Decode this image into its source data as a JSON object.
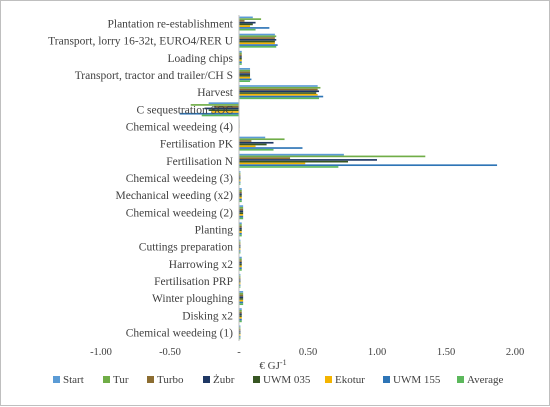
{
  "chart_data": {
    "type": "bar",
    "orientation": "horizontal",
    "categories": [
      "Plantation re-establishment",
      "Transport, lorry 16-32t, EURO4/RER U",
      "Loading chips",
      "Transport, tractor and trailer/CH S",
      "Harvest",
      "C sequestration SOC",
      "Chemical weedeing (4)",
      "Fertilisation PK",
      "Fertilisation N",
      "Chemical weedeing (3)",
      "Mechanical weeding (x2)",
      "Chemical weedeing (2)",
      "Planting",
      "Cuttings preparation",
      "Harrowing x2",
      "Fertilisation PRP",
      "Winter ploughing",
      "Disking x2",
      "Chemical weedeing (1)"
    ],
    "series": [
      {
        "name": "Start",
        "color": "#5b9bd5",
        "values": [
          0.1,
          0.26,
          0.02,
          0.08,
          0.57,
          -0.22,
          0.0,
          0.19,
          0.76,
          0.01,
          0.02,
          0.03,
          0.02,
          0.01,
          0.02,
          0.01,
          0.03,
          0.02,
          0.01
        ]
      },
      {
        "name": "Tur",
        "color": "#70ad47",
        "values": [
          0.16,
          0.27,
          0.02,
          0.08,
          0.59,
          -0.35,
          0.0,
          0.33,
          1.35,
          0.01,
          0.02,
          0.03,
          0.02,
          0.01,
          0.02,
          0.01,
          0.03,
          0.02,
          0.01
        ]
      },
      {
        "name": "Turbo",
        "color": "#8c6d31",
        "values": [
          0.04,
          0.26,
          0.02,
          0.08,
          0.57,
          -0.18,
          0.0,
          0.09,
          0.37,
          0.01,
          0.02,
          0.03,
          0.02,
          0.01,
          0.02,
          0.01,
          0.03,
          0.02,
          0.01
        ]
      },
      {
        "name": "Żubr",
        "color": "#1f3864",
        "values": [
          0.12,
          0.27,
          0.02,
          0.08,
          0.58,
          -0.25,
          0.0,
          0.25,
          1.0,
          0.01,
          0.02,
          0.03,
          0.02,
          0.01,
          0.02,
          0.01,
          0.03,
          0.02,
          0.01
        ]
      },
      {
        "name": "UWM 035",
        "color": "#375623",
        "values": [
          0.1,
          0.26,
          0.02,
          0.08,
          0.56,
          -0.22,
          0.0,
          0.2,
          0.79,
          0.01,
          0.02,
          0.03,
          0.02,
          0.01,
          0.02,
          0.01,
          0.03,
          0.02,
          0.01
        ]
      },
      {
        "name": "Ekotur",
        "color": "#f4b400",
        "values": [
          0.08,
          0.26,
          0.02,
          0.08,
          0.57,
          -0.2,
          0.0,
          0.12,
          0.48,
          0.01,
          0.02,
          0.03,
          0.02,
          0.01,
          0.02,
          0.01,
          0.03,
          0.02,
          0.01
        ]
      },
      {
        "name": "UWM 155",
        "color": "#2e75b6",
        "values": [
          0.22,
          0.28,
          0.02,
          0.09,
          0.61,
          -0.43,
          0.0,
          0.46,
          1.87,
          0.01,
          0.02,
          0.03,
          0.02,
          0.01,
          0.02,
          0.01,
          0.03,
          0.02,
          0.01
        ]
      },
      {
        "name": "Average",
        "color": "#5cb85c",
        "values": [
          0.12,
          0.27,
          0.02,
          0.08,
          0.58,
          -0.27,
          0.0,
          0.25,
          0.72,
          0.01,
          0.02,
          0.03,
          0.02,
          0.01,
          0.02,
          0.01,
          0.03,
          0.02,
          0.01
        ]
      }
    ],
    "xlim": [
      -1.0,
      2.0
    ],
    "xticks": [
      -1.0,
      -0.5,
      0,
      0.5,
      1.0,
      1.5,
      2.0
    ],
    "xtick_labels": [
      "-1.00",
      "-0.50",
      "-",
      "0.50",
      "1.00",
      "1.50",
      "2.00"
    ],
    "xlabel": "€ GJ",
    "xlabel_sup": "-1",
    "grid": false,
    "legend_position": "bottom"
  }
}
